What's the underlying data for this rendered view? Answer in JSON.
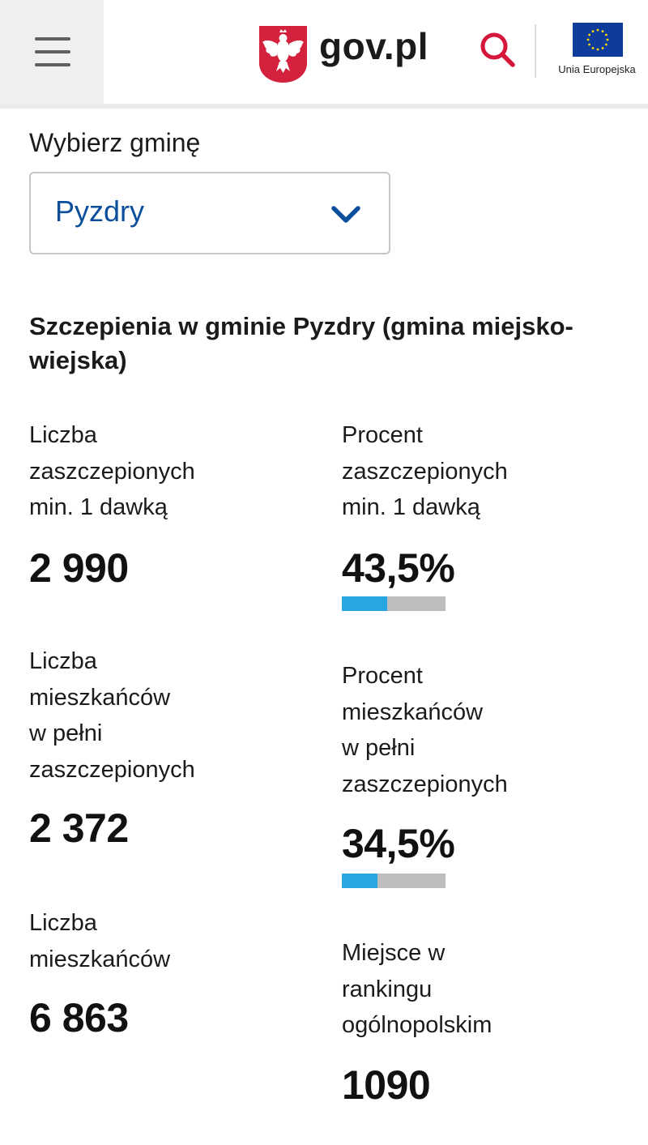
{
  "header": {
    "brand": "gov.pl",
    "eu_label": "Unia Europejska",
    "icons": {
      "menu": "hamburger-menu-icon",
      "search": "search-icon",
      "emblem": "polish-eagle-emblem",
      "eu_flag": "eu-flag"
    }
  },
  "selector": {
    "label": "Wybierz gminę",
    "value": "Pyzdry"
  },
  "section": {
    "title": "Szczepienia w gminie Pyzdry (gmina miejsko-wiejska)"
  },
  "stats": {
    "vaccinated_one_dose": {
      "label_lines": [
        "Liczba",
        "zaszczepionych",
        "min. 1 dawką"
      ],
      "value": "2 990"
    },
    "percent_one_dose": {
      "label_lines": [
        "Procent",
        "zaszczepionych",
        "min. 1 dawką"
      ],
      "value": "43,5%",
      "fraction": 0.435
    },
    "fully_vaccinated": {
      "label_lines": [
        "Liczba",
        "mieszkańców",
        "w pełni",
        "zaszczepionych"
      ],
      "value": "2 372"
    },
    "percent_fully": {
      "label_lines": [
        "Procent",
        "mieszkańców",
        "w pełni",
        "zaszczepionych"
      ],
      "value": "34,5%",
      "fraction": 0.345
    },
    "residents": {
      "label_lines": [
        "Liczba",
        "mieszkańców"
      ],
      "value": "6 863"
    },
    "ranking": {
      "label_lines": [
        "Miejsce w",
        "rankingu",
        "ogólnopolskim"
      ],
      "value": "1090"
    }
  },
  "colors": {
    "accent": "#0b4f9c",
    "search": "#d6173c",
    "progress": "#2aa5e3",
    "progress_track": "#bdbdbd"
  }
}
